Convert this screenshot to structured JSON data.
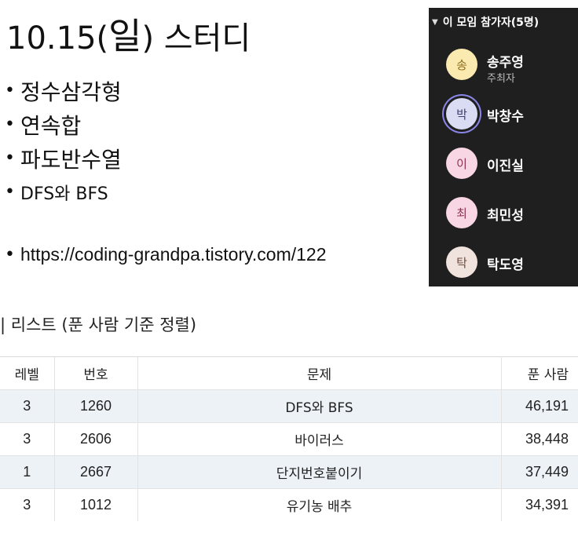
{
  "slide": {
    "title_prefix": "10.15(",
    "title_day": "일",
    "title_suffix": ") 스터디",
    "bullets": [
      "정수삼각형",
      "연속합",
      "파도반수열",
      "DFS와 BFS"
    ],
    "link": "https://coding-grandpa.tistory.com/122"
  },
  "panel": {
    "header": "이 모임 참가자(5명)",
    "participants": [
      {
        "initial": "송",
        "name": "송주영",
        "role": "주최자",
        "color": "#fbeab0",
        "text_color": "#8a6d1a",
        "self": false
      },
      {
        "initial": "박",
        "name": "박창수",
        "role": "",
        "color": "#d9dcf3",
        "text_color": "#3d3f6e",
        "self": true
      },
      {
        "initial": "이",
        "name": "이진실",
        "role": "",
        "color": "#f9d6e3",
        "text_color": "#8b3553",
        "self": false
      },
      {
        "initial": "최",
        "name": "최민성",
        "role": "",
        "color": "#f9d6e3",
        "text_color": "#8b3553",
        "self": false
      },
      {
        "initial": "탁",
        "name": "탁도영",
        "role": "",
        "color": "#f0e2dc",
        "text_color": "#6e4a3c",
        "self": false
      }
    ]
  },
  "list": {
    "title": "| 리스트 (푼 사람 기준 정렬)",
    "columns": [
      "레벨",
      "번호",
      "문제",
      "푼 사람"
    ],
    "rows": [
      {
        "level": "3",
        "number": "1260",
        "title": "DFS와 BFS",
        "solved": "46,191"
      },
      {
        "level": "3",
        "number": "2606",
        "title": "바이러스",
        "solved": "38,448"
      },
      {
        "level": "1",
        "number": "2667",
        "title": "단지번호붙이기",
        "solved": "37,449"
      },
      {
        "level": "3",
        "number": "1012",
        "title": "유기농 배추",
        "solved": "34,391"
      }
    ]
  }
}
